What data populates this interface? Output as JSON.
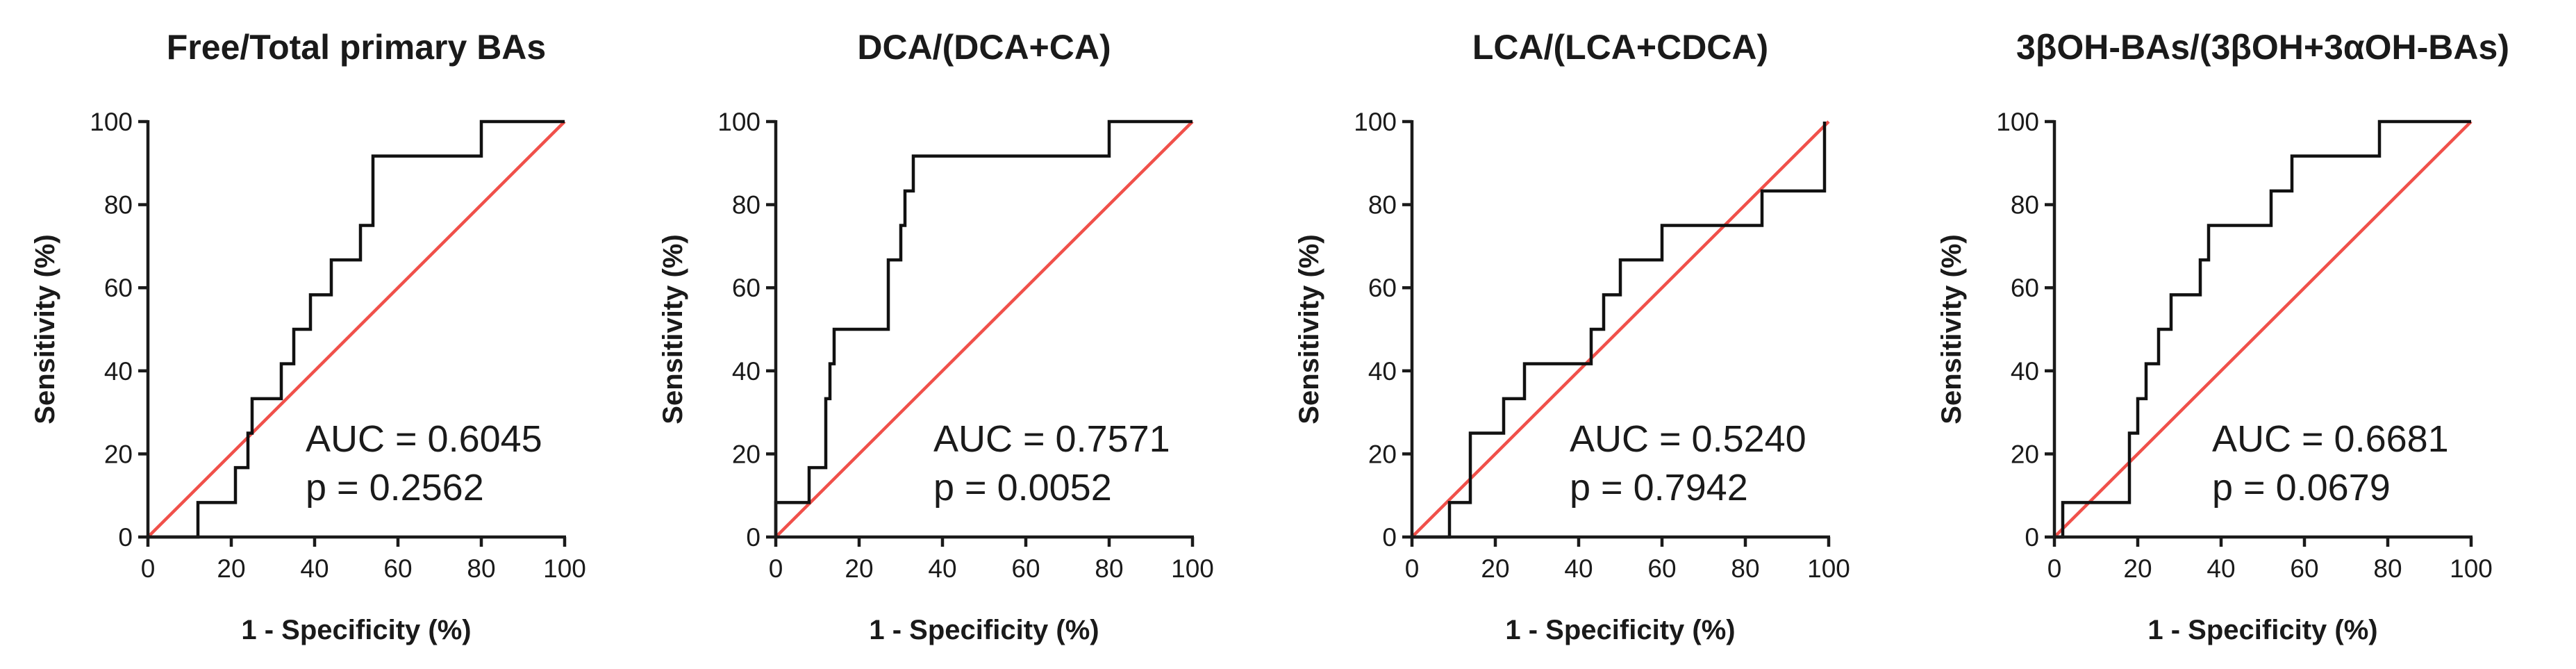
{
  "chart_data": [
    {
      "type": "line",
      "title": "Free/Total primary BAs",
      "xlabel": "1 - Specificity (%)",
      "ylabel": "Sensitivity (%)",
      "xlim": [
        0,
        100
      ],
      "ylim": [
        0,
        100
      ],
      "xticks": [
        "0",
        "20",
        "40",
        "60",
        "80",
        "100"
      ],
      "yticks": [
        "0",
        "20",
        "40",
        "60",
        "80",
        "100"
      ],
      "series": [
        {
          "points": [
            [
              0,
              0
            ],
            [
              12,
              0
            ],
            [
              12,
              8.3
            ],
            [
              21,
              8.3
            ],
            [
              21,
              16.7
            ],
            [
              24,
              16.7
            ],
            [
              24,
              25
            ],
            [
              25,
              25
            ],
            [
              25,
              33.3
            ],
            [
              32,
              33.3
            ],
            [
              32,
              41.7
            ],
            [
              35,
              41.7
            ],
            [
              35,
              50
            ],
            [
              39,
              50
            ],
            [
              39,
              58.3
            ],
            [
              44,
              58.3
            ],
            [
              44,
              66.7
            ],
            [
              51,
              66.7
            ],
            [
              51,
              75
            ],
            [
              54,
              75
            ],
            [
              54,
              91.7
            ],
            [
              80,
              91.7
            ],
            [
              80,
              100
            ],
            [
              100,
              100
            ]
          ],
          "color": "#111111"
        },
        {
          "points": [
            [
              0,
              0
            ],
            [
              100,
              100
            ]
          ],
          "color": "#f0504a"
        }
      ],
      "annotations": [
        "AUC = 0.6045",
        "p = 0.2562"
      ]
    },
    {
      "type": "line",
      "title": "DCA/(DCA+CA)",
      "xlabel": "1 - Specificity (%)",
      "ylabel": "Sensitivity (%)",
      "xlim": [
        0,
        100
      ],
      "ylim": [
        0,
        100
      ],
      "xticks": [
        "0",
        "20",
        "40",
        "60",
        "80",
        "100"
      ],
      "yticks": [
        "0",
        "20",
        "40",
        "60",
        "80",
        "100"
      ],
      "series": [
        {
          "points": [
            [
              0,
              0
            ],
            [
              0,
              8.3
            ],
            [
              8,
              8.3
            ],
            [
              8,
              16.7
            ],
            [
              12,
              16.7
            ],
            [
              12,
              33.3
            ],
            [
              13,
              33.3
            ],
            [
              13,
              41.7
            ],
            [
              14,
              41.7
            ],
            [
              14,
              50
            ],
            [
              27,
              50
            ],
            [
              27,
              66.7
            ],
            [
              30,
              66.7
            ],
            [
              30,
              75
            ],
            [
              31,
              75
            ],
            [
              31,
              83.3
            ],
            [
              33,
              83.3
            ],
            [
              33,
              91.7
            ],
            [
              80,
              91.7
            ],
            [
              80,
              100
            ],
            [
              100,
              100
            ]
          ],
          "color": "#111111"
        },
        {
          "points": [
            [
              0,
              0
            ],
            [
              100,
              100
            ]
          ],
          "color": "#f0504a"
        }
      ],
      "annotations": [
        "AUC = 0.7571",
        "p = 0.0052"
      ]
    },
    {
      "type": "line",
      "title": "LCA/(LCA+CDCA)",
      "xlabel": "1 - Specificity (%)",
      "ylabel": "Sensitivity (%)",
      "xlim": [
        0,
        100
      ],
      "ylim": [
        0,
        100
      ],
      "xticks": [
        "0",
        "20",
        "40",
        "60",
        "80",
        "100"
      ],
      "yticks": [
        "0",
        "20",
        "40",
        "60",
        "80",
        "100"
      ],
      "series": [
        {
          "points": [
            [
              0,
              0
            ],
            [
              9,
              0
            ],
            [
              9,
              8.3
            ],
            [
              14,
              8.3
            ],
            [
              14,
              25
            ],
            [
              22,
              25
            ],
            [
              22,
              33.3
            ],
            [
              27,
              33.3
            ],
            [
              27,
              41.7
            ],
            [
              43,
              41.7
            ],
            [
              43,
              50
            ],
            [
              46,
              50
            ],
            [
              46,
              58.3
            ],
            [
              50,
              58.3
            ],
            [
              50,
              66.7
            ],
            [
              60,
              66.7
            ],
            [
              60,
              75
            ],
            [
              84,
              75
            ],
            [
              84,
              83.3
            ],
            [
              99,
              83.3
            ],
            [
              99,
              100
            ]
          ],
          "color": "#111111"
        },
        {
          "points": [
            [
              0,
              0
            ],
            [
              100,
              100
            ]
          ],
          "color": "#f0504a"
        }
      ],
      "annotations": [
        "AUC = 0.5240",
        "p = 0.7942"
      ]
    },
    {
      "type": "line",
      "title": "3βOH-BAs/(3βOH+3αOH-BAs)",
      "xlabel": "1 - Specificity (%)",
      "ylabel": "Sensitivity (%)",
      "xlim": [
        0,
        100
      ],
      "ylim": [
        0,
        100
      ],
      "xticks": [
        "0",
        "20",
        "40",
        "60",
        "80",
        "100"
      ],
      "yticks": [
        "0",
        "20",
        "40",
        "60",
        "80",
        "100"
      ],
      "series": [
        {
          "points": [
            [
              0,
              0
            ],
            [
              2,
              0
            ],
            [
              2,
              8.3
            ],
            [
              18,
              8.3
            ],
            [
              18,
              25
            ],
            [
              20,
              25
            ],
            [
              20,
              33.3
            ],
            [
              22,
              33.3
            ],
            [
              22,
              41.7
            ],
            [
              25,
              41.7
            ],
            [
              25,
              50
            ],
            [
              28,
              50
            ],
            [
              28,
              58.3
            ],
            [
              35,
              58.3
            ],
            [
              35,
              66.7
            ],
            [
              37,
              66.7
            ],
            [
              37,
              75
            ],
            [
              52,
              75
            ],
            [
              52,
              83.3
            ],
            [
              57,
              83.3
            ],
            [
              57,
              91.7
            ],
            [
              78,
              91.7
            ],
            [
              78,
              100
            ],
            [
              100,
              100
            ]
          ],
          "color": "#111111"
        },
        {
          "points": [
            [
              0,
              0
            ],
            [
              100,
              100
            ]
          ],
          "color": "#f0504a"
        }
      ],
      "annotations": [
        "AUC = 0.6681",
        "p = 0.0679"
      ]
    }
  ]
}
